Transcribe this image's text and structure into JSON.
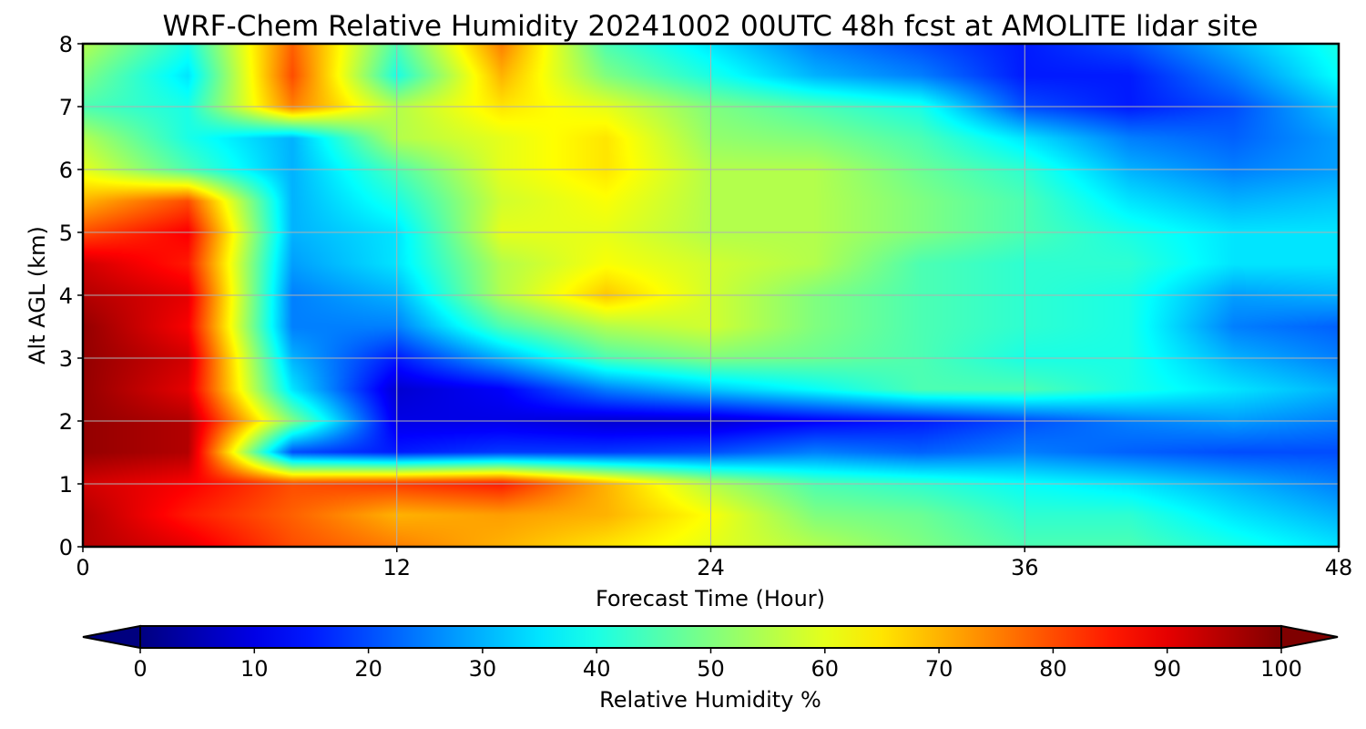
{
  "chart_data": {
    "type": "heatmap",
    "title": "WRF-Chem Relative Humidity 20241002 00UTC 48h fcst at AMOLITE lidar site",
    "xlabel": "Forecast Time (Hour)",
    "ylabel": "Alt AGL (km)",
    "xlim": [
      0,
      48
    ],
    "ylim": [
      0,
      8
    ],
    "x_ticks": [
      "0",
      "12",
      "24",
      "36",
      "48"
    ],
    "y_ticks": [
      "0",
      "1",
      "2",
      "3",
      "4",
      "5",
      "6",
      "7",
      "8"
    ],
    "grid": true,
    "colormap": "jet",
    "colorbar": {
      "label": "Relative Humidity %",
      "range": [
        0,
        100
      ],
      "ticks": [
        "0",
        "10",
        "20",
        "30",
        "40",
        "50",
        "60",
        "70",
        "80",
        "90",
        "100"
      ],
      "extend": "both",
      "orientation": "horizontal"
    },
    "x": [
      0,
      4,
      8,
      12,
      16,
      20,
      24,
      28,
      32,
      36,
      40,
      44,
      48
    ],
    "y": [
      0,
      0.5,
      1,
      1.5,
      2,
      2.5,
      3,
      3.5,
      4,
      4.5,
      5,
      5.5,
      6,
      6.5,
      7,
      7.5,
      8
    ],
    "z": [
      [
        95,
        90,
        80,
        75,
        70,
        65,
        60,
        55,
        50,
        45,
        45,
        40,
        35
      ],
      [
        95,
        85,
        78,
        70,
        72,
        70,
        62,
        50,
        48,
        42,
        42,
        35,
        30
      ],
      [
        92,
        88,
        80,
        82,
        85,
        70,
        55,
        45,
        42,
        38,
        35,
        30,
        25
      ],
      [
        98,
        95,
        20,
        15,
        18,
        18,
        20,
        25,
        22,
        25,
        22,
        20,
        20
      ],
      [
        98,
        95,
        50,
        10,
        10,
        8,
        8,
        12,
        15,
        20,
        25,
        28,
        25
      ],
      [
        98,
        90,
        35,
        8,
        12,
        25,
        32,
        38,
        45,
        45,
        40,
        35,
        30
      ],
      [
        98,
        92,
        30,
        15,
        30,
        45,
        50,
        48,
        45,
        40,
        40,
        30,
        25
      ],
      [
        98,
        88,
        25,
        25,
        45,
        55,
        58,
        50,
        45,
        42,
        40,
        25,
        22
      ],
      [
        95,
        90,
        25,
        30,
        55,
        68,
        58,
        50,
        45,
        42,
        40,
        28,
        30
      ],
      [
        92,
        85,
        28,
        35,
        55,
        62,
        58,
        55,
        45,
        42,
        42,
        35,
        35
      ],
      [
        80,
        88,
        30,
        35,
        60,
        60,
        55,
        55,
        50,
        45,
        40,
        35,
        35
      ],
      [
        70,
        80,
        30,
        40,
        58,
        62,
        55,
        55,
        50,
        45,
        35,
        30,
        32
      ],
      [
        60,
        45,
        30,
        45,
        60,
        65,
        55,
        55,
        48,
        42,
        30,
        25,
        28
      ],
      [
        55,
        40,
        30,
        55,
        60,
        65,
        52,
        50,
        45,
        35,
        25,
        22,
        28
      ],
      [
        45,
        40,
        75,
        55,
        65,
        60,
        50,
        45,
        40,
        20,
        15,
        20,
        32
      ],
      [
        50,
        35,
        80,
        40,
        70,
        50,
        40,
        30,
        25,
        15,
        15,
        25,
        38
      ],
      [
        55,
        40,
        78,
        45,
        75,
        45,
        35,
        25,
        20,
        15,
        20,
        30,
        40
      ]
    ]
  }
}
